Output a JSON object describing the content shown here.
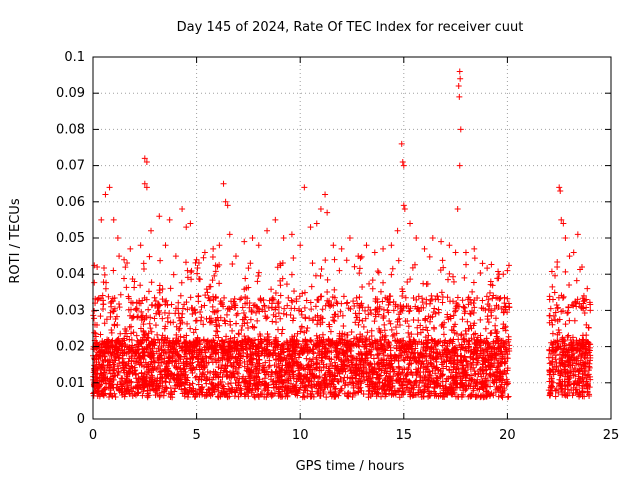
{
  "chart_data": {
    "type": "scatter",
    "title": "Day 145 of 2024, Rate Of TEC Index for receiver cuut",
    "xlabel": "GPS time / hours",
    "ylabel": "ROTI / TECUs",
    "xlim": [
      0,
      25
    ],
    "ylim": [
      0,
      0.1
    ],
    "x_ticks": [
      "0",
      "5",
      "10",
      "15",
      "20",
      "25"
    ],
    "y_ticks": [
      "0",
      "0.01",
      "0.02",
      "0.03",
      "0.04",
      "0.05",
      "0.06",
      "0.07",
      "0.08",
      "0.09",
      "0.1"
    ],
    "grid": true,
    "marker": "+",
    "color": "#ff0000",
    "series": [
      {
        "points": [
          [
            0.1,
            0.032
          ],
          [
            0.2,
            0.042
          ],
          [
            0.4,
            0.055
          ],
          [
            0.6,
            0.062
          ],
          [
            0.8,
            0.064
          ],
          [
            1.0,
            0.055
          ],
          [
            1.2,
            0.05
          ],
          [
            1.5,
            0.044
          ],
          [
            1.8,
            0.047
          ],
          [
            2.0,
            0.038
          ],
          [
            2.3,
            0.048
          ],
          [
            2.5,
            0.072
          ],
          [
            2.6,
            0.071
          ],
          [
            2.5,
            0.065
          ],
          [
            2.6,
            0.064
          ],
          [
            2.8,
            0.052
          ],
          [
            3.2,
            0.056
          ],
          [
            3.5,
            0.048
          ],
          [
            3.7,
            0.055
          ],
          [
            4.0,
            0.045
          ],
          [
            4.3,
            0.058
          ],
          [
            4.5,
            0.053
          ],
          [
            4.7,
            0.054
          ],
          [
            5.0,
            0.044
          ],
          [
            5.4,
            0.046
          ],
          [
            5.8,
            0.047
          ],
          [
            6.1,
            0.048
          ],
          [
            6.3,
            0.065
          ],
          [
            6.4,
            0.06
          ],
          [
            6.5,
            0.059
          ],
          [
            6.6,
            0.051
          ],
          [
            6.9,
            0.045
          ],
          [
            7.3,
            0.049
          ],
          [
            7.7,
            0.05
          ],
          [
            8.0,
            0.048
          ],
          [
            8.4,
            0.052
          ],
          [
            8.8,
            0.055
          ],
          [
            9.2,
            0.05
          ],
          [
            9.6,
            0.051
          ],
          [
            10.0,
            0.048
          ],
          [
            10.2,
            0.064
          ],
          [
            10.5,
            0.053
          ],
          [
            10.8,
            0.054
          ],
          [
            11.0,
            0.058
          ],
          [
            11.2,
            0.062
          ],
          [
            11.3,
            0.057
          ],
          [
            11.6,
            0.048
          ],
          [
            12.0,
            0.047
          ],
          [
            12.4,
            0.05
          ],
          [
            12.8,
            0.045
          ],
          [
            13.2,
            0.048
          ],
          [
            13.6,
            0.046
          ],
          [
            14.0,
            0.047
          ],
          [
            14.4,
            0.048
          ],
          [
            14.7,
            0.052
          ],
          [
            14.9,
            0.076
          ],
          [
            14.95,
            0.071
          ],
          [
            15.0,
            0.07
          ],
          [
            15.0,
            0.059
          ],
          [
            15.05,
            0.058
          ],
          [
            15.3,
            0.054
          ],
          [
            15.6,
            0.05
          ],
          [
            16.0,
            0.047
          ],
          [
            16.4,
            0.05
          ],
          [
            16.8,
            0.049
          ],
          [
            17.2,
            0.048
          ],
          [
            17.5,
            0.046
          ],
          [
            17.6,
            0.058
          ],
          [
            17.7,
            0.096
          ],
          [
            17.72,
            0.094
          ],
          [
            17.65,
            0.092
          ],
          [
            17.68,
            0.089
          ],
          [
            17.75,
            0.08
          ],
          [
            17.7,
            0.07
          ],
          [
            18.0,
            0.046
          ],
          [
            18.4,
            0.047
          ],
          [
            18.8,
            0.043
          ],
          [
            19.2,
            0.038
          ],
          [
            19.6,
            0.04
          ],
          [
            19.8,
            0.04
          ],
          [
            20.0,
            0.041
          ],
          [
            22.2,
            0.033
          ],
          [
            22.4,
            0.042
          ],
          [
            22.5,
            0.064
          ],
          [
            22.55,
            0.063
          ],
          [
            22.6,
            0.055
          ],
          [
            22.7,
            0.054
          ],
          [
            22.8,
            0.05
          ],
          [
            23.0,
            0.045
          ],
          [
            23.2,
            0.046
          ],
          [
            23.4,
            0.051
          ],
          [
            23.6,
            0.042
          ],
          [
            23.8,
            0.033
          ],
          [
            24.0,
            0.03
          ]
        ]
      }
    ]
  }
}
